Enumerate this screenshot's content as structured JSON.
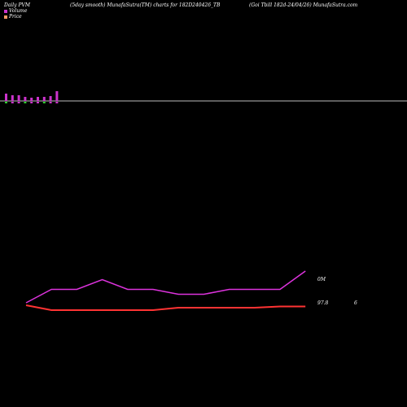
{
  "header": {
    "left": "Daily PVM",
    "middle": "(5day smooth) MunafaSutra(TM) charts for 182D240426_TB",
    "right": "(Goi  Tbill 182d-24/04/26) MunafaSutra.com"
  },
  "legend": [
    {
      "label": "Volume",
      "color": "#cc33cc"
    },
    {
      "label": "Price",
      "color": "#ff9966"
    }
  ],
  "colors": {
    "volume_up": "#cc33cc",
    "volume_down": "#33cc33",
    "pvm_line": "#dd33dd",
    "price_line": "#ff3333",
    "baseline": "#bbbbbb"
  },
  "chart_data": [
    {
      "type": "bar",
      "series": [
        {
          "name": "Volume",
          "values": [
            9,
            7,
            7,
            5,
            4,
            5,
            5,
            6,
            12
          ]
        }
      ],
      "grid": false
    },
    {
      "type": "line",
      "series": [
        {
          "values": [
            0.2,
            1.3,
            1.3,
            2.1,
            1.3,
            1.3,
            0.9,
            0.9,
            1.3,
            1.3,
            1.3,
            2.8
          ]
        },
        {
          "values": [
            0.0,
            -0.4,
            -0.4,
            -0.4,
            -0.4,
            -0.4,
            -0.2,
            -0.2,
            -0.2,
            -0.2,
            -0.1,
            -0.1
          ]
        }
      ],
      "right_labels": [
        "0M",
        "97.8",
        "6"
      ]
    }
  ]
}
